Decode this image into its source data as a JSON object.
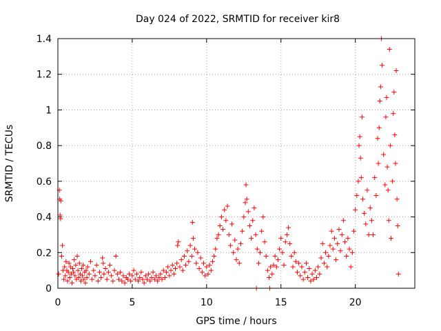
{
  "chart_data": {
    "type": "scatter",
    "title": "Day 024 of 2022, SRMTID for receiver kir8",
    "xlabel": "GPS time / hours",
    "ylabel": "SRMTID / TECUs",
    "xlim": [
      0,
      24
    ],
    "ylim": [
      0,
      1.4
    ],
    "xticks": [
      0,
      5,
      10,
      15,
      20
    ],
    "xtick_labels": [
      "0",
      "5",
      "10",
      "15",
      "20"
    ],
    "yticks": [
      0,
      0.2,
      0.4,
      0.6,
      0.8,
      1.0,
      1.2,
      1.4
    ],
    "ytick_labels": [
      "0",
      "0.2",
      "0.4",
      "0.6",
      "0.8",
      "1",
      "1.2",
      "1.4"
    ],
    "grid": true,
    "marker": "+",
    "color": "#ff0000",
    "series": [
      {
        "name": "kir8",
        "points": [
          [
            0.05,
            0.08
          ],
          [
            0.1,
            0.55
          ],
          [
            0.12,
            0.5
          ],
          [
            0.15,
            0.41
          ],
          [
            0.18,
            0.39
          ],
          [
            0.2,
            0.49
          ],
          [
            0.25,
            0.18
          ],
          [
            0.3,
            0.24
          ],
          [
            0.35,
            0.1
          ],
          [
            0.4,
            0.05
          ],
          [
            0.45,
            0.12
          ],
          [
            0.5,
            0.07
          ],
          [
            0.55,
            0.15
          ],
          [
            0.6,
            0.1
          ],
          [
            0.65,
            0.04
          ],
          [
            0.7,
            0.09
          ],
          [
            0.75,
            0.14
          ],
          [
            0.8,
            0.06
          ],
          [
            0.85,
            0.12
          ],
          [
            0.9,
            0.08
          ],
          [
            0.95,
            0.03
          ],
          [
            1.0,
            0.11
          ],
          [
            1.05,
            0.09
          ],
          [
            1.1,
            0.16
          ],
          [
            1.15,
            0.07
          ],
          [
            1.2,
            0.13
          ],
          [
            1.25,
            0.05
          ],
          [
            1.3,
            0.18
          ],
          [
            1.35,
            0.1
          ],
          [
            1.4,
            0.06
          ],
          [
            1.45,
            0.14
          ],
          [
            1.5,
            0.08
          ],
          [
            1.55,
            0.04
          ],
          [
            1.6,
            0.11
          ],
          [
            1.65,
            0.07
          ],
          [
            1.7,
            0.13
          ],
          [
            1.75,
            0.05
          ],
          [
            1.8,
            0.09
          ],
          [
            1.85,
            0.03
          ],
          [
            1.9,
            0.1
          ],
          [
            1.95,
            0.06
          ],
          [
            2.0,
            0.12
          ],
          [
            2.1,
            0.08
          ],
          [
            2.2,
            0.15
          ],
          [
            2.3,
            0.05
          ],
          [
            2.4,
            0.1
          ],
          [
            2.5,
            0.07
          ],
          [
            2.6,
            0.13
          ],
          [
            2.7,
            0.04
          ],
          [
            2.8,
            0.09
          ],
          [
            2.9,
            0.06
          ],
          [
            3.0,
            0.17
          ],
          [
            3.05,
            0.14
          ],
          [
            3.1,
            0.08
          ],
          [
            3.2,
            0.11
          ],
          [
            3.3,
            0.05
          ],
          [
            3.4,
            0.09
          ],
          [
            3.5,
            0.13
          ],
          [
            3.6,
            0.07
          ],
          [
            3.7,
            0.04
          ],
          [
            3.8,
            0.1
          ],
          [
            3.9,
            0.18
          ],
          [
            4.0,
            0.08
          ],
          [
            4.1,
            0.05
          ],
          [
            4.2,
            0.09
          ],
          [
            4.3,
            0.04
          ],
          [
            4.4,
            0.07
          ],
          [
            4.5,
            0.03
          ],
          [
            4.6,
            0.06
          ],
          [
            4.7,
            0.05
          ],
          [
            4.8,
            0.08
          ],
          [
            4.9,
            0.04
          ],
          [
            5.0,
            0.07
          ],
          [
            5.1,
            0.1
          ],
          [
            5.2,
            0.05
          ],
          [
            5.3,
            0.08
          ],
          [
            5.4,
            0.04
          ],
          [
            5.5,
            0.06
          ],
          [
            5.6,
            0.09
          ],
          [
            5.7,
            0.05
          ],
          [
            5.8,
            0.03
          ],
          [
            5.9,
            0.07
          ],
          [
            6.0,
            0.05
          ],
          [
            6.1,
            0.08
          ],
          [
            6.2,
            0.04
          ],
          [
            6.3,
            0.06
          ],
          [
            6.4,
            0.09
          ],
          [
            6.5,
            0.05
          ],
          [
            6.6,
            0.07
          ],
          [
            6.7,
            0.04
          ],
          [
            6.8,
            0.06
          ],
          [
            6.9,
            0.08
          ],
          [
            7.0,
            0.05
          ],
          [
            7.1,
            0.1
          ],
          [
            7.2,
            0.06
          ],
          [
            7.3,
            0.09
          ],
          [
            7.4,
            0.12
          ],
          [
            7.5,
            0.07
          ],
          [
            7.6,
            0.1
          ],
          [
            7.7,
            0.13
          ],
          [
            7.8,
            0.08
          ],
          [
            7.9,
            0.11
          ],
          [
            8.0,
            0.14
          ],
          [
            8.05,
            0.24
          ],
          [
            8.1,
            0.26
          ],
          [
            8.2,
            0.12
          ],
          [
            8.3,
            0.16
          ],
          [
            8.4,
            0.1
          ],
          [
            8.5,
            0.18
          ],
          [
            8.6,
            0.13
          ],
          [
            8.7,
            0.21
          ],
          [
            8.8,
            0.15
          ],
          [
            8.9,
            0.24
          ],
          [
            9.0,
            0.18
          ],
          [
            9.05,
            0.37
          ],
          [
            9.1,
            0.28
          ],
          [
            9.2,
            0.22
          ],
          [
            9.3,
            0.14
          ],
          [
            9.4,
            0.2
          ],
          [
            9.5,
            0.11
          ],
          [
            9.6,
            0.17
          ],
          [
            9.7,
            0.09
          ],
          [
            9.8,
            0.14
          ],
          [
            9.9,
            0.07
          ],
          [
            10.0,
            0.12
          ],
          [
            10.1,
            0.08
          ],
          [
            10.2,
            0.13
          ],
          [
            10.3,
            0.1
          ],
          [
            10.4,
            0.15
          ],
          [
            10.5,
            0.18
          ],
          [
            10.6,
            0.22
          ],
          [
            10.7,
            0.28
          ],
          [
            10.8,
            0.3
          ],
          [
            10.9,
            0.35
          ],
          [
            11.0,
            0.4
          ],
          [
            11.1,
            0.33
          ],
          [
            11.2,
            0.44
          ],
          [
            11.3,
            0.38
          ],
          [
            11.4,
            0.46
          ],
          [
            11.5,
            0.3
          ],
          [
            11.6,
            0.24
          ],
          [
            11.7,
            0.36
          ],
          [
            11.8,
            0.2
          ],
          [
            11.9,
            0.27
          ],
          [
            12.0,
            0.16
          ],
          [
            12.1,
            0.22
          ],
          [
            12.2,
            0.14
          ],
          [
            12.3,
            0.25
          ],
          [
            12.4,
            0.32
          ],
          [
            12.5,
            0.4
          ],
          [
            12.6,
            0.48
          ],
          [
            12.65,
            0.58
          ],
          [
            12.7,
            0.5
          ],
          [
            12.8,
            0.43
          ],
          [
            12.9,
            0.35
          ],
          [
            13.0,
            0.28
          ],
          [
            13.1,
            0.38
          ],
          [
            13.2,
            0.45
          ],
          [
            13.3,
            0.3
          ],
          [
            13.35,
            0.0
          ],
          [
            13.4,
            0.22
          ],
          [
            13.5,
            0.14
          ],
          [
            13.6,
            0.2
          ],
          [
            13.7,
            0.32
          ],
          [
            13.8,
            0.4
          ],
          [
            13.9,
            0.26
          ],
          [
            14.0,
            0.18
          ],
          [
            14.1,
            0.1
          ],
          [
            14.2,
            0.06
          ],
          [
            14.25,
            0.0
          ],
          [
            14.3,
            0.12
          ],
          [
            14.4,
            0.08
          ],
          [
            14.5,
            0.13
          ],
          [
            14.6,
            0.18
          ],
          [
            14.7,
            0.12
          ],
          [
            14.8,
            0.16
          ],
          [
            14.9,
            0.22
          ],
          [
            15.0,
            0.28
          ],
          [
            15.1,
            0.2
          ],
          [
            15.2,
            0.13
          ],
          [
            15.3,
            0.26
          ],
          [
            15.4,
            0.3
          ],
          [
            15.5,
            0.34
          ],
          [
            15.6,
            0.25
          ],
          [
            15.7,
            0.18
          ],
          [
            15.8,
            0.12
          ],
          [
            15.9,
            0.2
          ],
          [
            16.0,
            0.15
          ],
          [
            16.1,
            0.09
          ],
          [
            16.2,
            0.14
          ],
          [
            16.3,
            0.07
          ],
          [
            16.4,
            0.12
          ],
          [
            16.5,
            0.05
          ],
          [
            16.6,
            0.09
          ],
          [
            16.7,
            0.14
          ],
          [
            16.8,
            0.06
          ],
          [
            16.9,
            0.11
          ],
          [
            17.0,
            0.04
          ],
          [
            17.1,
            0.08
          ],
          [
            17.2,
            0.05
          ],
          [
            17.3,
            0.1
          ],
          [
            17.4,
            0.06
          ],
          [
            17.5,
            0.12
          ],
          [
            17.6,
            0.08
          ],
          [
            17.7,
            0.17
          ],
          [
            17.8,
            0.25
          ],
          [
            17.9,
            0.14
          ],
          [
            18.0,
            0.2
          ],
          [
            18.1,
            0.12
          ],
          [
            18.2,
            0.18
          ],
          [
            18.3,
            0.24
          ],
          [
            18.4,
            0.32
          ],
          [
            18.5,
            0.22
          ],
          [
            18.6,
            0.28
          ],
          [
            18.7,
            0.16
          ],
          [
            18.8,
            0.25
          ],
          [
            18.9,
            0.33
          ],
          [
            19.0,
            0.21
          ],
          [
            19.1,
            0.3
          ],
          [
            19.2,
            0.38
          ],
          [
            19.3,
            0.26
          ],
          [
            19.4,
            0.18
          ],
          [
            19.5,
            0.28
          ],
          [
            19.6,
            0.22
          ],
          [
            19.7,
            0.12
          ],
          [
            19.8,
            0.2
          ],
          [
            19.9,
            0.32
          ],
          [
            20.0,
            0.44
          ],
          [
            20.1,
            0.52
          ],
          [
            20.2,
            0.6
          ],
          [
            20.25,
            0.8
          ],
          [
            20.3,
            0.85
          ],
          [
            20.35,
            0.73
          ],
          [
            20.4,
            0.62
          ],
          [
            20.45,
            0.96
          ],
          [
            20.5,
            0.5
          ],
          [
            20.6,
            0.42
          ],
          [
            20.7,
            0.36
          ],
          [
            20.8,
            0.55
          ],
          [
            20.9,
            0.3
          ],
          [
            21.0,
            0.45
          ],
          [
            21.1,
            0.38
          ],
          [
            21.2,
            0.3
          ],
          [
            21.3,
            0.62
          ],
          [
            21.4,
            0.52
          ],
          [
            21.5,
            0.84
          ],
          [
            21.55,
            0.7
          ],
          [
            21.6,
            0.9
          ],
          [
            21.65,
            1.05
          ],
          [
            21.7,
            1.13
          ],
          [
            21.75,
            1.4
          ],
          [
            21.8,
            1.25
          ],
          [
            21.9,
            0.75
          ],
          [
            22.0,
            0.58
          ],
          [
            22.05,
            0.96
          ],
          [
            22.1,
            1.07
          ],
          [
            22.15,
            0.68
          ],
          [
            22.2,
            0.55
          ],
          [
            22.25,
            0.38
          ],
          [
            22.3,
            1.34
          ],
          [
            22.35,
            0.8
          ],
          [
            22.4,
            0.28
          ],
          [
            22.5,
            0.6
          ],
          [
            22.55,
            0.98
          ],
          [
            22.6,
            1.1
          ],
          [
            22.65,
            0.86
          ],
          [
            22.7,
            0.7
          ],
          [
            22.75,
            1.22
          ],
          [
            22.8,
            0.5
          ],
          [
            22.85,
            0.35
          ],
          [
            22.9,
            0.08
          ]
        ]
      }
    ]
  }
}
